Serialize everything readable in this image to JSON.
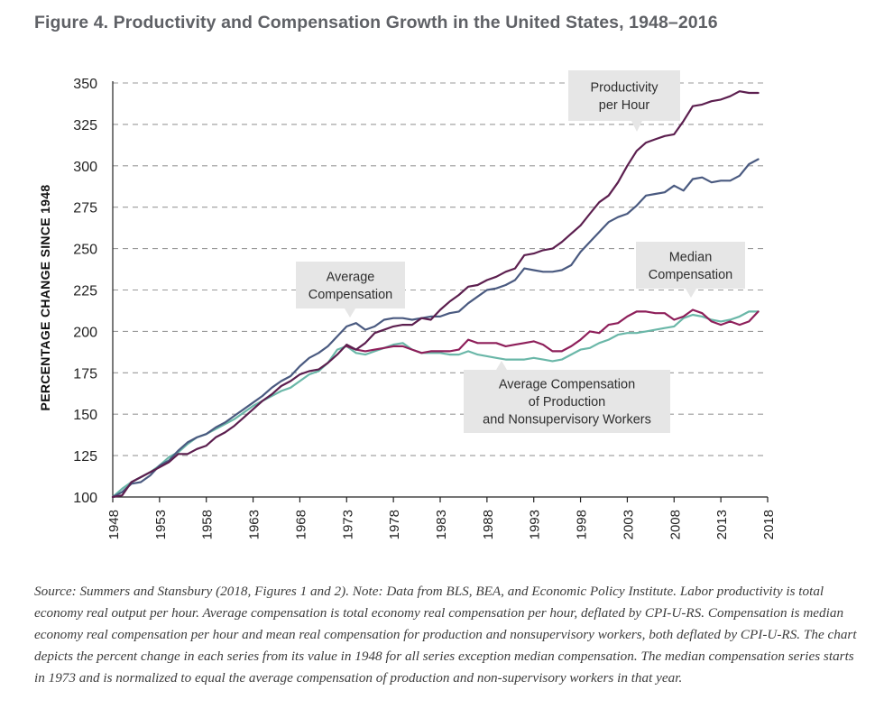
{
  "figure": {
    "title": "Figure 4. Productivity and Compensation Growth in the United States, 1948–2016",
    "source_note": "Source: Summers and Stansbury (2018, Figures 1 and 2). Note: Data from BLS, BEA, and Economic Policy Institute. Labor productivity is total economy real output per hour. Average compensation is total economy real compensation per hour, deflated by CPI-U-RS. Compensation is median economy real compensation per hour and mean real compensation for production and nonsupervisory workers, both deflated by CPI-U-RS. The chart depicts the percent change in each series from its value in 1948 for all series exception median compensation. The median compensation series starts in 1973 and is normalized to equal the average compensation of production and non-supervisory workers in that year."
  },
  "callouts": {
    "productivity": [
      "Productivity",
      "per Hour"
    ],
    "average": [
      "Average",
      "Compensation"
    ],
    "median": [
      "Median",
      "Compensation"
    ],
    "production": [
      "Average Compensation",
      "of Production",
      "and Nonsupervisory Workers"
    ]
  },
  "colors": {
    "productivity": "#5c1f4f",
    "average_compensation": "#4a5a80",
    "median_compensation": "#8e1f5a",
    "production_workers": "#6ab7a8"
  },
  "chart_data": {
    "type": "line",
    "title": "",
    "xlabel": "",
    "ylabel": "PERCENTAGE CHANGE SINCE 1948",
    "xlim": [
      1948,
      2018
    ],
    "ylim": [
      100,
      350
    ],
    "yticks": [
      100,
      125,
      150,
      175,
      200,
      225,
      250,
      275,
      300,
      325,
      350
    ],
    "xticks": [
      1948,
      1953,
      1958,
      1963,
      1968,
      1973,
      1978,
      1983,
      1988,
      1993,
      1998,
      2003,
      2008,
      2013,
      2018
    ],
    "grid": "horizontal dashed",
    "series": [
      {
        "name": "Productivity per Hour",
        "color_key": "productivity",
        "x": [
          1948,
          1949,
          1950,
          1951,
          1952,
          1953,
          1954,
          1955,
          1956,
          1957,
          1958,
          1959,
          1960,
          1961,
          1962,
          1963,
          1964,
          1965,
          1966,
          1967,
          1968,
          1969,
          1970,
          1971,
          1972,
          1973,
          1974,
          1975,
          1976,
          1977,
          1978,
          1979,
          1980,
          1981,
          1982,
          1983,
          1984,
          1985,
          1986,
          1987,
          1988,
          1989,
          1990,
          1991,
          1992,
          1993,
          1994,
          1995,
          1996,
          1997,
          1998,
          1999,
          2000,
          2001,
          2002,
          2003,
          2004,
          2005,
          2006,
          2007,
          2008,
          2009,
          2010,
          2011,
          2012,
          2013,
          2014,
          2015,
          2016,
          2017
        ],
        "y": [
          100,
          101,
          109,
          112,
          115,
          118,
          121,
          126,
          126,
          129,
          131,
          136,
          139,
          143,
          148,
          153,
          158,
          162,
          167,
          170,
          174,
          176,
          177,
          181,
          186,
          192,
          189,
          193,
          199,
          201,
          203,
          204,
          204,
          208,
          207,
          213,
          218,
          222,
          227,
          228,
          231,
          233,
          236,
          238,
          246,
          247,
          249,
          250,
          254,
          259,
          264,
          271,
          278,
          282,
          290,
          300,
          309,
          314,
          316,
          318,
          319,
          327,
          336,
          337,
          339,
          340,
          342,
          345,
          344,
          344
        ]
      },
      {
        "name": "Average Compensation",
        "color_key": "average_compensation",
        "x": [
          1948,
          1949,
          1950,
          1951,
          1952,
          1953,
          1954,
          1955,
          1956,
          1957,
          1958,
          1959,
          1960,
          1961,
          1962,
          1963,
          1964,
          1965,
          1966,
          1967,
          1968,
          1969,
          1970,
          1971,
          1972,
          1973,
          1974,
          1975,
          1976,
          1977,
          1978,
          1979,
          1980,
          1981,
          1982,
          1983,
          1984,
          1985,
          1986,
          1987,
          1988,
          1989,
          1990,
          1991,
          1992,
          1993,
          1994,
          1995,
          1996,
          1997,
          1998,
          1999,
          2000,
          2001,
          2002,
          2003,
          2004,
          2005,
          2006,
          2007,
          2008,
          2009,
          2010,
          2011,
          2012,
          2013,
          2014,
          2015,
          2016,
          2017
        ],
        "y": [
          100,
          103,
          108,
          109,
          113,
          119,
          122,
          128,
          133,
          136,
          138,
          142,
          145,
          149,
          153,
          157,
          161,
          166,
          170,
          173,
          179,
          184,
          187,
          191,
          197,
          203,
          205,
          201,
          203,
          207,
          208,
          208,
          207,
          208,
          209,
          209,
          211,
          212,
          217,
          221,
          225,
          226,
          228,
          231,
          238,
          237,
          236,
          236,
          237,
          240,
          248,
          254,
          260,
          266,
          269,
          271,
          276,
          282,
          283,
          284,
          288,
          285,
          292,
          293,
          290,
          291,
          291,
          294,
          301,
          304
        ]
      },
      {
        "name": "Median Compensation",
        "color_key": "median_compensation",
        "x": [
          1973,
          1974,
          1975,
          1976,
          1977,
          1978,
          1979,
          1980,
          1981,
          1982,
          1983,
          1984,
          1985,
          1986,
          1987,
          1988,
          1989,
          1990,
          1991,
          1992,
          1993,
          1994,
          1995,
          1996,
          1997,
          1998,
          1999,
          2000,
          2001,
          2002,
          2003,
          2004,
          2005,
          2006,
          2007,
          2008,
          2009,
          2010,
          2011,
          2012,
          2013,
          2014,
          2015,
          2016,
          2017
        ],
        "y": [
          191,
          189,
          188,
          189,
          190,
          191,
          191,
          189,
          187,
          188,
          188,
          188,
          189,
          195,
          193,
          193,
          193,
          191,
          192,
          193,
          194,
          192,
          188,
          188,
          191,
          195,
          200,
          199,
          204,
          205,
          209,
          212,
          212,
          211,
          211,
          207,
          209,
          213,
          211,
          206,
          204,
          206,
          204,
          206,
          212
        ]
      },
      {
        "name": "Average Compensation of Production and Nonsupervisory Workers",
        "color_key": "production_workers",
        "x": [
          1948,
          1949,
          1950,
          1951,
          1952,
          1953,
          1954,
          1955,
          1956,
          1957,
          1958,
          1959,
          1960,
          1961,
          1962,
          1963,
          1964,
          1965,
          1966,
          1967,
          1968,
          1969,
          1970,
          1971,
          1972,
          1973,
          1974,
          1975,
          1976,
          1977,
          1978,
          1979,
          1980,
          1981,
          1982,
          1983,
          1984,
          1985,
          1986,
          1987,
          1988,
          1989,
          1990,
          1991,
          1992,
          1993,
          1994,
          1995,
          1996,
          1997,
          1998,
          1999,
          2000,
          2001,
          2002,
          2003,
          2004,
          2005,
          2006,
          2007,
          2008,
          2009,
          2010,
          2011,
          2012,
          2013,
          2014,
          2015,
          2016,
          2017
        ],
        "y": [
          100,
          105,
          109,
          112,
          115,
          119,
          124,
          127,
          132,
          136,
          138,
          141,
          144,
          147,
          151,
          155,
          158,
          161,
          164,
          166,
          170,
          174,
          176,
          181,
          189,
          191,
          187,
          186,
          188,
          190,
          192,
          193,
          189,
          187,
          187,
          187,
          186,
          186,
          188,
          186,
          185,
          184,
          183,
          183,
          183,
          184,
          183,
          182,
          183,
          186,
          189,
          190,
          193,
          195,
          198,
          199,
          199,
          200,
          201,
          202,
          203,
          208,
          210,
          209,
          207,
          206,
          207,
          209,
          212,
          212
        ]
      }
    ]
  }
}
